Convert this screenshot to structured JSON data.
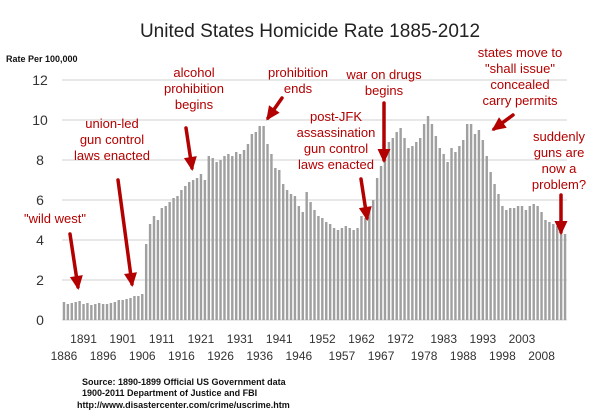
{
  "chart_data": {
    "type": "bar",
    "title": "United States Homicide Rate 1885-2012",
    "ylabel": "Rate Per 100,000",
    "xlabel": "",
    "ylim": [
      0,
      12
    ],
    "yticks": [
      0,
      2,
      4,
      6,
      8,
      10,
      12
    ],
    "grid": true,
    "bar_color": "#a0a0a0",
    "start_year": 1886,
    "xticks_upper": [
      "1891",
      "1901",
      "1911",
      "1921",
      "1931",
      "1941",
      "1952",
      "1962",
      "1972",
      "1983",
      "1993",
      "2003"
    ],
    "xticks_lower": [
      "1886",
      "1896",
      "1906",
      "1916",
      "1926",
      "1936",
      "1946",
      "1957",
      "1967",
      "1978",
      "1988",
      "1998",
      "2008"
    ],
    "values": [
      0.9,
      0.8,
      0.85,
      0.9,
      0.95,
      0.8,
      0.85,
      0.75,
      0.8,
      0.85,
      0.8,
      0.8,
      0.85,
      0.9,
      1.0,
      1.0,
      1.05,
      1.1,
      1.2,
      1.2,
      1.3,
      3.8,
      4.8,
      5.2,
      5.0,
      5.6,
      5.7,
      5.9,
      6.1,
      6.2,
      6.5,
      6.7,
      6.9,
      7.0,
      7.1,
      7.3,
      7.0,
      8.2,
      8.1,
      7.9,
      8.0,
      8.2,
      8.3,
      8.2,
      8.4,
      8.3,
      8.5,
      8.8,
      9.3,
      9.4,
      9.7,
      9.7,
      8.8,
      8.3,
      7.6,
      7.5,
      6.8,
      6.5,
      6.3,
      6.2,
      5.7,
      5.4,
      6.4,
      5.9,
      5.5,
      5.2,
      5.1,
      4.9,
      4.8,
      4.6,
      4.5,
      4.6,
      4.7,
      4.6,
      4.5,
      4.6,
      5.2,
      5.1,
      5.6,
      6.0,
      7.1,
      7.7,
      8.5,
      8.9,
      9.1,
      9.4,
      9.6,
      9.1,
      8.6,
      8.7,
      8.9,
      9.1,
      9.8,
      10.2,
      9.8,
      9.2,
      8.6,
      8.3,
      7.9,
      8.6,
      8.4,
      8.7,
      9.0,
      9.8,
      9.8,
      9.3,
      9.5,
      9.0,
      8.2,
      7.4,
      6.8,
      6.3,
      5.7,
      5.5,
      5.6,
      5.6,
      5.7,
      5.7,
      5.5,
      5.7,
      5.8,
      5.7,
      5.4,
      5.0,
      4.9,
      4.8,
      4.7,
      4.5,
      4.3
    ],
    "annotations": [
      {
        "id": "wild-west",
        "lines": [
          "\"wild west\""
        ]
      },
      {
        "id": "union-led",
        "lines": [
          "union-led",
          "gun control",
          "laws enacted"
        ]
      },
      {
        "id": "alcohol-prohibition",
        "lines": [
          "alcohol",
          "prohibition",
          "begins"
        ]
      },
      {
        "id": "prohibition-ends",
        "lines": [
          "prohibition",
          "ends"
        ]
      },
      {
        "id": "post-jfk",
        "lines": [
          "post-JFK",
          "assassination",
          "gun control",
          "laws enacted"
        ]
      },
      {
        "id": "war-on-drugs",
        "lines": [
          "war on drugs",
          "begins"
        ]
      },
      {
        "id": "shall-issue",
        "lines": [
          "states move to",
          "\"shall issue\"",
          "concealed",
          "carry permits"
        ]
      },
      {
        "id": "guns-problem",
        "lines": [
          "suddenly",
          "guns are",
          "now a",
          "problem?"
        ]
      }
    ],
    "annotation_color": "#b30000"
  },
  "source": {
    "line1": "Source: 1890-1899 Official US Government data",
    "line2": "1900-2011 Department of Justice and FBI",
    "line3": "http://www.disastercenter.com/crime/uscrime.htm"
  }
}
